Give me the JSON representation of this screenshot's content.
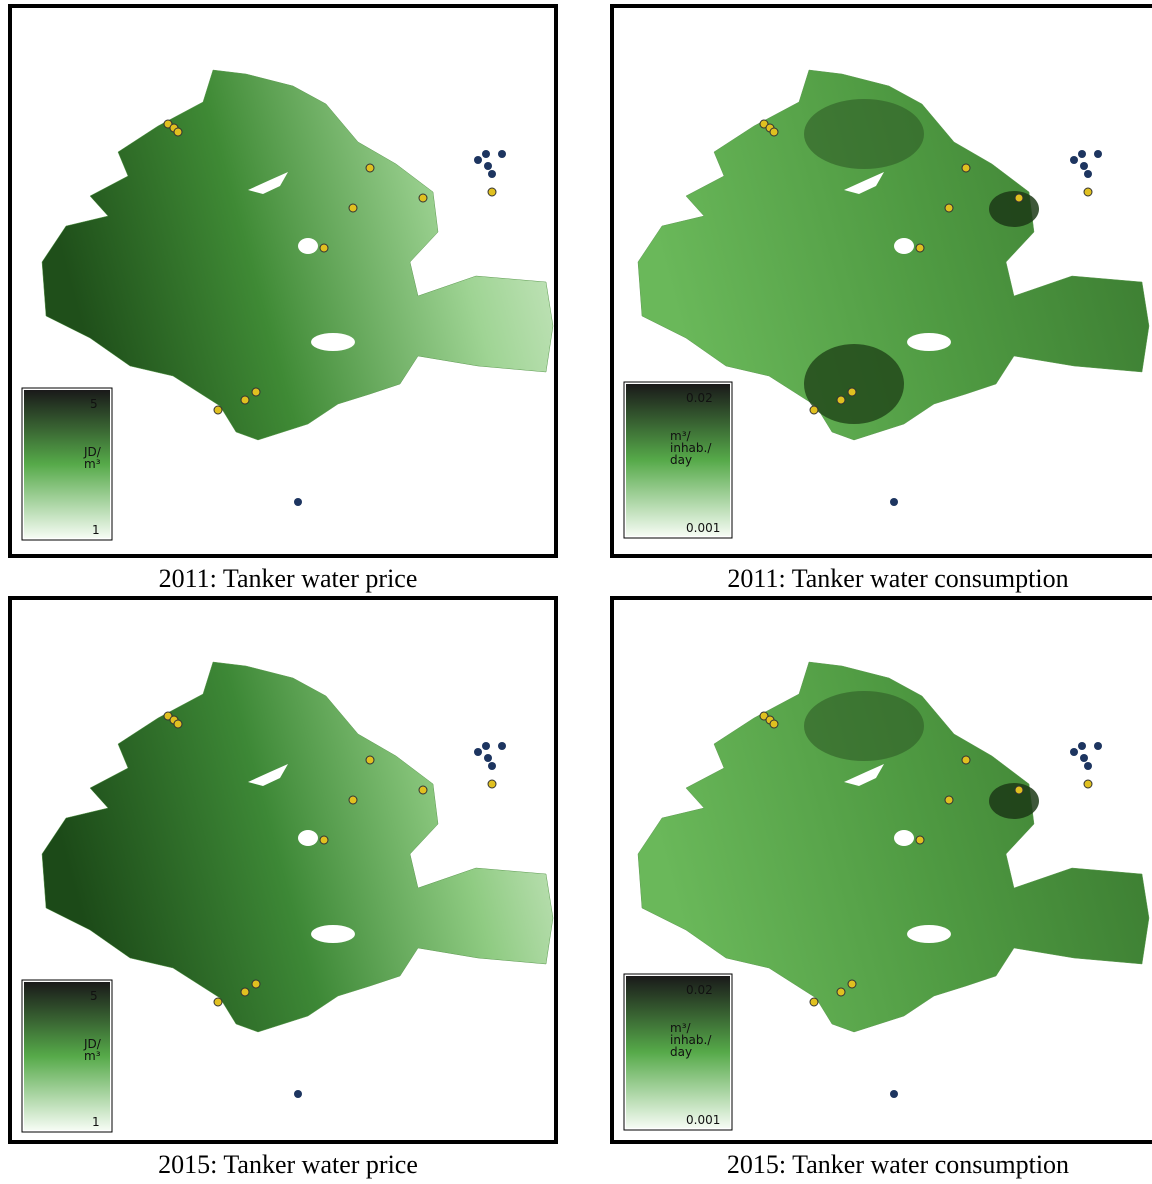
{
  "panels": [
    {
      "caption": "2011: Tanker water price",
      "legend": {
        "max": "5",
        "unit": [
          "JD/",
          "m³"
        ],
        "min": "1"
      }
    },
    {
      "caption": "2011: Tanker water consumption",
      "legend": {
        "max": "0.02",
        "unit": [
          "m³/",
          "inhab./",
          "day"
        ],
        "min": "0.001"
      }
    },
    {
      "caption": "2015: Tanker water price",
      "legend": {
        "max": "5",
        "unit": [
          "JD/",
          "m³"
        ],
        "min": "1"
      }
    },
    {
      "caption": "2015: Tanker water consumption",
      "legend": {
        "max": "0.02",
        "unit": [
          "m³/",
          "inhab./",
          "day"
        ],
        "min": "0.001"
      }
    }
  ]
}
